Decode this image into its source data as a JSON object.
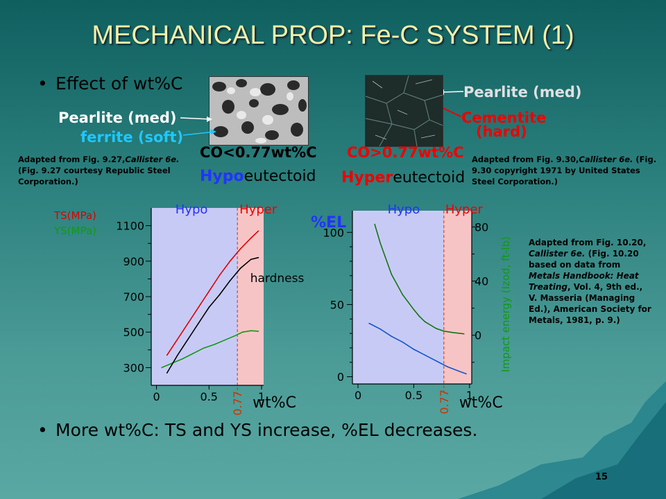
{
  "slide": {
    "title": "MECHANICAL PROP:  Fe-C SYSTEM (1)",
    "bullet_symbol": "•",
    "bullet1": "Effect of wt%C",
    "bullet2": "More wt%C:  TS and YS increase, %EL decreases.",
    "page_number": "15"
  },
  "left_micrograph": {
    "label_pearlite": "Pearlite (med)",
    "label_ferrite": "ferrite (soft)",
    "composition": "CO<0.77wt%C",
    "type_prefix": "Hypo",
    "type_suffix": "eutectoid",
    "caption": [
      {
        "text": "Adapted from Fig. 9.27,",
        "italic": false
      },
      {
        "text": "Callister",
        "italic": true
      },
      {
        "text": " 6e.",
        "italic": true
      },
      {
        "text": "  (Fig. 9.27 courtesy Republic Steel Corporation.)",
        "italic": false
      }
    ]
  },
  "right_micrograph": {
    "label_pearlite": "Pearlite (med)",
    "label_cementite": "Cementite",
    "label_hard": "(hard)",
    "composition": "CO>0.77wt%C",
    "type_prefix": "Hyper",
    "type_suffix": "eutectoid",
    "caption": [
      {
        "text": "Adapted from Fig. 9.30,",
        "italic": false
      },
      {
        "text": "Callister",
        "italic": true
      },
      {
        "text": " 6e.",
        "italic": true
      },
      {
        "text": "  (Fig. 9.30 copyright 1971 by United States Steel Corporation.)",
        "italic": false
      }
    ]
  },
  "right_caption": [
    {
      "text": "Adapted from Fig. 10.20, ",
      "italic": false
    },
    {
      "text": "Callister 6e.",
      "italic": true
    },
    {
      "text": " (Fig. 10.20 based on data from ",
      "italic": false
    },
    {
      "text": "Metals Handbook: Heat Treating",
      "italic": true
    },
    {
      "text": ", Vol. 4, 9th ed., V. Masseria (Managing Ed.), American Society for Metals, 1981, p. 9.)",
      "italic": false
    }
  ],
  "colors": {
    "hypo_region": "#c8caf6",
    "hyper_region": "#f7c4c6",
    "ts_line": "#dd0000",
    "ys_line": "#119911",
    "hardness_line": "#000000",
    "el_line": "#1155cc",
    "impact_line": "#117711",
    "eutectoid_marker": "#cc3300"
  },
  "chart_data": [
    {
      "type": "line",
      "region_labels": {
        "hypo": "Hypo",
        "hyper": "Hyper"
      },
      "eutectoid": {
        "x": 0.77,
        "label": "0.77"
      },
      "xlabel": "wt%C",
      "xlim": [
        -0.05,
        1.02
      ],
      "ylim": [
        200,
        1200
      ],
      "x_ticks": [
        {
          "value": 0,
          "label": "0"
        },
        {
          "value": 0.5,
          "label": "0.5"
        },
        {
          "value": 1,
          "label": "1"
        }
      ],
      "y_ticks": [
        {
          "value": 300,
          "label": "300"
        },
        {
          "value": 500,
          "label": "500"
        },
        {
          "value": 700,
          "label": "700"
        },
        {
          "value": 900,
          "label": "900"
        },
        {
          "value": 1100,
          "label": "1100"
        }
      ],
      "ylabels": [
        {
          "text": "TS(MPa)",
          "color": "#dd0000"
        },
        {
          "text": "YS(MPa)",
          "color": "#119911"
        }
      ],
      "series": [
        {
          "name": "TS(MPa)",
          "color_key": "ts_line",
          "points": [
            [
              0.1,
              370
            ],
            [
              0.2,
              460
            ],
            [
              0.3,
              550
            ],
            [
              0.4,
              640
            ],
            [
              0.5,
              730
            ],
            [
              0.6,
              820
            ],
            [
              0.7,
              900
            ],
            [
              0.8,
              970
            ],
            [
              0.9,
              1030
            ],
            [
              0.97,
              1070
            ]
          ]
        },
        {
          "name": "YS(MPa)",
          "color_key": "ys_line",
          "points": [
            [
              0.05,
              300
            ],
            [
              0.15,
              325
            ],
            [
              0.25,
              350
            ],
            [
              0.35,
              380
            ],
            [
              0.45,
              410
            ],
            [
              0.55,
              430
            ],
            [
              0.65,
              455
            ],
            [
              0.75,
              480
            ],
            [
              0.82,
              500
            ],
            [
              0.9,
              508
            ],
            [
              0.97,
              505
            ]
          ]
        },
        {
          "name": "hardness",
          "color_key": "hardness_line",
          "label": "hardness",
          "points": [
            [
              0.1,
              270
            ],
            [
              0.2,
              370
            ],
            [
              0.3,
              460
            ],
            [
              0.4,
              550
            ],
            [
              0.5,
              640
            ],
            [
              0.6,
              710
            ],
            [
              0.7,
              790
            ],
            [
              0.8,
              860
            ],
            [
              0.9,
              910
            ],
            [
              0.97,
              920
            ]
          ]
        }
      ]
    },
    {
      "type": "line",
      "region_labels": {
        "hypo": "Hypo",
        "hyper": "Hyper"
      },
      "eutectoid": {
        "x": 0.77,
        "label": "0.77"
      },
      "xlabel": "wt%C",
      "xlim": [
        -0.05,
        1.02
      ],
      "ylim": [
        -5,
        115
      ],
      "right_ylim": [
        -36,
        92
      ],
      "x_ticks": [
        {
          "value": 0,
          "label": "0"
        },
        {
          "value": 0.5,
          "label": "0.5"
        },
        {
          "value": 1,
          "label": "1"
        }
      ],
      "y_ticks": [
        {
          "value": 0,
          "label": "0"
        },
        {
          "value": 50,
          "label": "50"
        },
        {
          "value": 100,
          "label": "100"
        }
      ],
      "right_y_ticks": [
        {
          "value": 0,
          "label": "0"
        },
        {
          "value": 40,
          "label": "40"
        },
        {
          "value": 80,
          "label": "80"
        }
      ],
      "ylabel": "%EL",
      "right_ylabel": "Impact energy (Izod, ft-lb)",
      "series": [
        {
          "name": "%EL",
          "axis": "left",
          "color_key": "el_line",
          "points": [
            [
              0.1,
              37
            ],
            [
              0.2,
              33
            ],
            [
              0.3,
              28
            ],
            [
              0.4,
              24
            ],
            [
              0.5,
              19
            ],
            [
              0.6,
              15
            ],
            [
              0.7,
              11
            ],
            [
              0.8,
              7
            ],
            [
              0.9,
              4
            ],
            [
              0.97,
              2
            ]
          ]
        },
        {
          "name": "Impact energy",
          "axis": "right",
          "color_key": "impact_line",
          "points": [
            [
              0.15,
              82
            ],
            [
              0.2,
              68
            ],
            [
              0.3,
              45
            ],
            [
              0.4,
              30
            ],
            [
              0.5,
              19
            ],
            [
              0.55,
              14
            ],
            [
              0.6,
              10
            ],
            [
              0.7,
              5
            ],
            [
              0.77,
              3
            ],
            [
              0.85,
              2
            ],
            [
              0.95,
              1
            ]
          ]
        }
      ]
    }
  ]
}
